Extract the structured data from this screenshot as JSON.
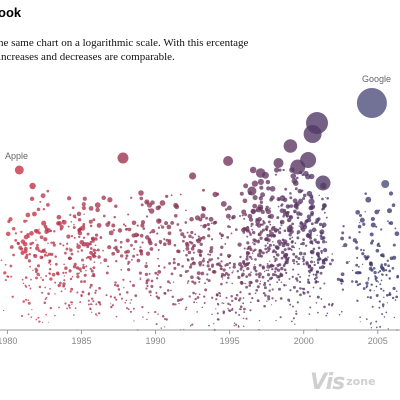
{
  "header": {
    "title": "ook",
    "subtitle": "he same chart on a logarithmic scale. With this ercentage increases and decreases are comparable."
  },
  "watermark": {
    "main": "Vis",
    "suffix": "zone"
  },
  "chart_data": {
    "type": "scatter",
    "title": "",
    "xlabel": "",
    "ylabel": "",
    "x_unit": "year",
    "xlim": [
      1979.5,
      2006.5
    ],
    "xticks": [
      "1980",
      "1985",
      "1990",
      "1995",
      "2000",
      "2005"
    ],
    "tick_values": [
      1980,
      1985,
      1990,
      1995,
      2000,
      2005
    ],
    "y_scale": "log",
    "grid": false,
    "legend": "none",
    "colors": {
      "early": "#cc3344",
      "late": "#3a3a6e",
      "axis": "#999999"
    },
    "annotations": [
      {
        "label": "Apple",
        "x": 1980.8
      },
      {
        "label": "Google",
        "x": 2004.6
      }
    ],
    "highlighted_points": [
      {
        "x": 1980.8,
        "size": 4.5
      },
      {
        "x": 1981.7,
        "size": 3.2
      },
      {
        "x": 1987.8,
        "size": 5.5
      },
      {
        "x": 1992.5,
        "size": 3.6
      },
      {
        "x": 1994.9,
        "size": 5.0
      },
      {
        "x": 1996.5,
        "size": 4.5
      },
      {
        "x": 1997.1,
        "size": 4.8
      },
      {
        "x": 1998.3,
        "size": 5.0
      },
      {
        "x": 1999.1,
        "size": 6.8
      },
      {
        "x": 1999.6,
        "size": 7.5
      },
      {
        "x": 2000.3,
        "size": 8.0
      },
      {
        "x": 2000.6,
        "size": 9.0
      },
      {
        "x": 2000.9,
        "size": 11.0
      },
      {
        "x": 2001.3,
        "size": 7.5
      },
      {
        "x": 2004.6,
        "size": 15.0
      },
      {
        "x": 2005.5,
        "size": 4.0
      }
    ]
  }
}
